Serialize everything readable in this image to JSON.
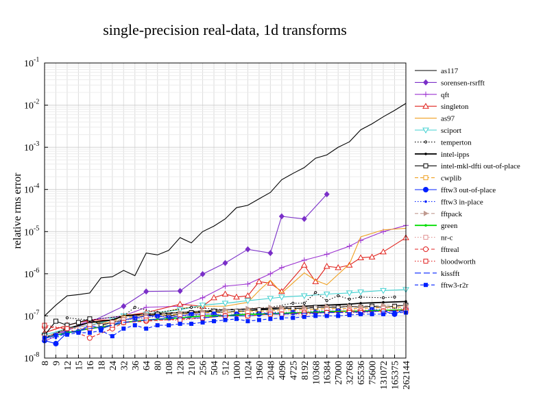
{
  "chart_data": {
    "type": "line",
    "title": "single-precision real-data, 1d transforms",
    "xlabel": "",
    "ylabel": "relative rms error",
    "yscale": "log",
    "ylim": [
      1e-08,
      0.1
    ],
    "y_ticks": [
      {
        "value": 1e-08,
        "base": "10",
        "exp": "-8"
      },
      {
        "value": 1e-07,
        "base": "10",
        "exp": "-7"
      },
      {
        "value": 1e-06,
        "base": "10",
        "exp": "-6"
      },
      {
        "value": 1e-05,
        "base": "10",
        "exp": "-5"
      },
      {
        "value": 0.0001,
        "base": "10",
        "exp": "-4"
      },
      {
        "value": 0.001,
        "base": "10",
        "exp": "-3"
      },
      {
        "value": 0.01,
        "base": "10",
        "exp": "-2"
      },
      {
        "value": 0.1,
        "base": "10",
        "exp": "-1"
      }
    ],
    "grid": true,
    "legend_position": "right",
    "categories": [
      "8",
      "9",
      "12",
      "15",
      "16",
      "18",
      "24",
      "32",
      "36",
      "64",
      "80",
      "108",
      "128",
      "210",
      "256",
      "504",
      "512",
      "1000",
      "1024",
      "1960",
      "2048",
      "4096",
      "4725",
      "8192",
      "10368",
      "16384",
      "27000",
      "32768",
      "65536",
      "75600",
      "131072",
      "165375",
      "262144"
    ],
    "series": [
      {
        "name": "as117",
        "color": "#000000",
        "marker": "none",
        "dash": "solid",
        "values": [
          1e-07,
          1.8e-07,
          3e-07,
          3.2e-07,
          3.5e-07,
          8e-07,
          8.5e-07,
          1.2e-06,
          9e-07,
          3.1e-06,
          2.8e-06,
          3.6e-06,
          7.2e-06,
          5.4e-06,
          1e-05,
          1.35e-05,
          2e-05,
          3.7e-05,
          4.2e-05,
          6e-05,
          8.5e-05,
          0.00017,
          0.00024,
          0.00033,
          0.00055,
          0.00066,
          0.001,
          0.00135,
          0.0026,
          0.0036,
          0.0053,
          0.0075,
          0.011
        ]
      },
      {
        "name": "sorensen-rsrfft",
        "color": "#7a2fc8",
        "marker": "diamond",
        "dash": "solid",
        "values": [
          3e-08,
          null,
          null,
          null,
          7e-08,
          null,
          null,
          1.7e-07,
          null,
          3.8e-07,
          null,
          null,
          3.9e-07,
          null,
          9.8e-07,
          null,
          1.8e-06,
          null,
          3.8e-06,
          null,
          3.1e-06,
          2.3e-05,
          null,
          2e-05,
          null,
          7.7e-05,
          null,
          null,
          null,
          null,
          null,
          null,
          null
        ]
      },
      {
        "name": "qft",
        "color": "#9b30d0",
        "marker": "plus",
        "dash": "solid",
        "values": [
          2.5e-08,
          null,
          null,
          null,
          8e-08,
          null,
          null,
          1e-07,
          null,
          1.6e-07,
          null,
          null,
          1.7e-07,
          null,
          2.7e-07,
          null,
          5.1e-07,
          null,
          5.7e-07,
          null,
          1e-06,
          1.4e-06,
          null,
          2.1e-06,
          null,
          2.9e-06,
          null,
          4.5e-06,
          6.2e-06,
          null,
          1e-05,
          null,
          1.4e-05
        ]
      },
      {
        "name": "singleton",
        "color": "#e0201a",
        "marker": "triangle",
        "dash": "solid",
        "values": [
          4e-08,
          null,
          6e-08,
          null,
          8e-08,
          null,
          8e-08,
          1e-07,
          null,
          1.2e-07,
          null,
          null,
          1.9e-07,
          null,
          1.7e-07,
          2.7e-07,
          3.3e-07,
          2.8e-07,
          3e-07,
          6.5e-07,
          6e-07,
          3.8e-07,
          null,
          1.6e-06,
          6.5e-07,
          1.5e-06,
          1.4e-06,
          1.6e-06,
          2.4e-06,
          2.5e-06,
          3.3e-06,
          null,
          7.2e-06
        ]
      },
      {
        "name": "as97",
        "color": "#f0a020",
        "marker": "none",
        "dash": "solid",
        "values": [
          3e-08,
          null,
          5e-08,
          null,
          7e-08,
          null,
          7e-08,
          1.1e-07,
          null,
          1e-07,
          null,
          null,
          1.5e-07,
          null,
          1.7e-07,
          null,
          1.7e-07,
          null,
          2.1e-07,
          4e-07,
          7e-07,
          3.5e-07,
          null,
          1.05e-06,
          7e-07,
          5.5e-07,
          null,
          1.7e-06,
          7.5e-06,
          null,
          1.1e-05,
          null,
          1.2e-05
        ]
      },
      {
        "name": "sciport",
        "color": "#40d0d0",
        "marker": "triangle-down",
        "dash": "solid",
        "values": [
          3.5e-08,
          null,
          5e-08,
          null,
          6e-08,
          null,
          8e-08,
          1e-07,
          null,
          1.1e-07,
          null,
          null,
          1.4e-07,
          null,
          1.8e-07,
          null,
          2e-07,
          null,
          2.3e-07,
          null,
          2.6e-07,
          2.8e-07,
          null,
          3e-07,
          null,
          3.3e-07,
          null,
          3.5e-07,
          3.7e-07,
          null,
          4e-07,
          null,
          4.2e-07
        ]
      },
      {
        "name": "temperton",
        "color": "#000000",
        "marker": "circle-small",
        "dash": "dotted",
        "values": [
          null,
          null,
          9e-08,
          null,
          8e-08,
          null,
          null,
          1e-07,
          1.6e-07,
          null,
          1.2e-07,
          null,
          null,
          1.6e-07,
          null,
          null,
          1.4e-07,
          null,
          1.5e-07,
          null,
          1.6e-07,
          null,
          2e-07,
          2e-07,
          3.6e-07,
          2.3e-07,
          3e-07,
          2.5e-07,
          2.8e-07,
          null,
          2.7e-07,
          2.8e-07,
          null
        ]
      },
      {
        "name": "intel-ipps",
        "color": "#000000",
        "marker": "dot",
        "dash": "solid",
        "values": [
          3e-08,
          null,
          5e-08,
          null,
          7e-08,
          null,
          8e-08,
          1e-07,
          null,
          1.1e-07,
          null,
          null,
          1.2e-07,
          null,
          1.3e-07,
          null,
          1.4e-07,
          null,
          1.45e-07,
          null,
          1.5e-07,
          1.6e-07,
          null,
          1.7e-07,
          null,
          1.8e-07,
          null,
          1.9e-07,
          2e-07,
          null,
          2.1e-07,
          null,
          2.2e-07
        ]
      },
      {
        "name": "intel-mkl-dfti out-of-place",
        "color": "#000000",
        "marker": "square-open",
        "dash": "solid",
        "values": [
          3.5e-08,
          7.5e-08,
          6e-08,
          7e-08,
          8.5e-08,
          6e-08,
          7e-08,
          8e-08,
          9e-08,
          1e-07,
          1.1e-07,
          1e-07,
          1.1e-07,
          1.2e-07,
          1.2e-07,
          1.3e-07,
          1.2e-07,
          1.3e-07,
          1.3e-07,
          1.4e-07,
          1.4e-07,
          1.5e-07,
          1.5e-07,
          1.5e-07,
          1.6e-07,
          1.6e-07,
          1.6e-07,
          1.7e-07,
          1.6e-07,
          1.7e-07,
          1.6e-07,
          1.7e-07,
          1.8e-07
        ]
      },
      {
        "name": "cwplib",
        "color": "#f0a020",
        "marker": "square-open",
        "dash": "dashed",
        "values": [
          3e-08,
          null,
          5e-08,
          null,
          6e-08,
          null,
          7e-08,
          9e-08,
          null,
          1e-07,
          null,
          null,
          1.1e-07,
          null,
          1.2e-07,
          null,
          1.2e-07,
          null,
          1.3e-07,
          null,
          1.3e-07,
          1.4e-07,
          null,
          1.4e-07,
          null,
          1.5e-07,
          null,
          1.5e-07,
          1.5e-07,
          null,
          1.6e-07,
          null,
          1.6e-07
        ]
      },
      {
        "name": "fftw3 out-of-place",
        "color": "#0020ff",
        "marker": "circle-filled",
        "dash": "solid",
        "values": [
          2.6e-08,
          2.2e-08,
          4e-08,
          4.2e-08,
          6e-08,
          5e-08,
          6e-08,
          8e-08,
          9e-08,
          1e-07,
          1e-07,
          9e-08,
          1e-07,
          1.1e-07,
          1.1e-07,
          1.1e-07,
          1e-07,
          1.1e-07,
          1.1e-07,
          1.1e-07,
          1.2e-07,
          1.1e-07,
          1.2e-07,
          1.2e-07,
          1.2e-07,
          1.3e-07,
          1.3e-07,
          1.3e-07,
          1.2e-07,
          1.4e-07,
          1.3e-07,
          1.1e-07,
          1.5e-07
        ]
      },
      {
        "name": "fftw3 in-place",
        "color": "#0020ff",
        "marker": "dot",
        "dash": "dotted",
        "values": [
          3e-08,
          3e-08,
          4e-08,
          4.5e-08,
          6e-08,
          5e-08,
          6e-08,
          8e-08,
          8.5e-08,
          9e-08,
          1e-07,
          9.5e-08,
          1e-07,
          1e-07,
          1.1e-07,
          1.1e-07,
          1e-07,
          1.1e-07,
          1.1e-07,
          1.2e-07,
          1.2e-07,
          1.2e-07,
          1.2e-07,
          1.2e-07,
          1.3e-07,
          1.3e-07,
          1.3e-07,
          1.3e-07,
          1.3e-07,
          1.4e-07,
          1.4e-07,
          1.3e-07,
          1.5e-07
        ]
      },
      {
        "name": "fftpack",
        "color": "#c09a90",
        "marker": "triangle-right",
        "dash": "dashed",
        "values": [
          3e-08,
          null,
          5e-08,
          null,
          6e-08,
          null,
          7e-08,
          9e-08,
          null,
          1.1e-07,
          null,
          null,
          1.2e-07,
          null,
          1.3e-07,
          null,
          1.4e-07,
          null,
          1.5e-07,
          null,
          1.6e-07,
          1.6e-07,
          null,
          1.6e-07,
          null,
          1.7e-07,
          null,
          1.7e-07,
          1.7e-07,
          null,
          1.8e-07,
          null,
          1.8e-07
        ]
      },
      {
        "name": "green",
        "color": "#00dd00",
        "marker": "dot",
        "dash": "solid",
        "values": [
          3e-08,
          null,
          4e-08,
          null,
          5e-08,
          null,
          6e-08,
          7e-08,
          null,
          8e-08,
          null,
          null,
          9e-08,
          null,
          1e-07,
          null,
          1e-07,
          null,
          1.1e-07,
          null,
          1.1e-07,
          1.15e-07,
          null,
          1.2e-07,
          null,
          1.25e-07,
          null,
          1.3e-07,
          1.3e-07,
          null,
          1.35e-07,
          null,
          1.4e-07
        ]
      },
      {
        "name": "nr-c",
        "color": "#e09090",
        "marker": "square-open",
        "dash": "dotted",
        "values": [
          3e-08,
          null,
          5e-08,
          null,
          6e-08,
          null,
          7e-08,
          8e-08,
          null,
          9e-08,
          null,
          null,
          1e-07,
          null,
          1.1e-07,
          null,
          1.1e-07,
          null,
          1.2e-07,
          null,
          1.2e-07,
          1.3e-07,
          null,
          1.3e-07,
          null,
          1.4e-07,
          null,
          1.4e-07,
          1.4e-07,
          null,
          1.5e-07,
          null,
          1.5e-07
        ]
      },
      {
        "name": "fftreal",
        "color": "#e02020",
        "marker": "circle-open",
        "dash": "dashed",
        "values": [
          5.5e-08,
          null,
          5e-08,
          null,
          3e-08,
          null,
          5e-08,
          7e-08,
          null,
          7.5e-08,
          null,
          null,
          8.5e-08,
          null,
          9e-08,
          null,
          1e-07,
          null,
          1e-07,
          null,
          1.1e-07,
          1.1e-07,
          null,
          1.2e-07,
          null,
          1.2e-07,
          null,
          1.3e-07,
          1.3e-07,
          null,
          1.3e-07,
          null,
          1.4e-07
        ]
      },
      {
        "name": "bloodworth",
        "color": "#e02020",
        "marker": "square-open",
        "dash": "dotted",
        "values": [
          6e-08,
          null,
          5e-08,
          null,
          5e-08,
          null,
          6e-08,
          7e-08,
          null,
          8e-08,
          null,
          null,
          8e-08,
          null,
          9e-08,
          null,
          1e-07,
          null,
          1e-07,
          null,
          1.1e-07,
          1.1e-07,
          null,
          1.1e-07,
          null,
          1.2e-07,
          null,
          1.2e-07,
          1.2e-07,
          null,
          1.3e-07,
          null,
          1.3e-07
        ]
      },
      {
        "name": "kissfft",
        "color": "#0020ff",
        "marker": "none",
        "dash": "long-dash",
        "values": [
          3e-08,
          null,
          4e-08,
          null,
          5e-08,
          null,
          6e-08,
          7e-08,
          null,
          8e-08,
          null,
          null,
          9e-08,
          null,
          9e-08,
          null,
          1e-07,
          null,
          1e-07,
          null,
          1.1e-07,
          1.1e-07,
          null,
          1.15e-07,
          null,
          1.2e-07,
          null,
          1.2e-07,
          1.25e-07,
          null,
          1.3e-07,
          null,
          1.3e-07
        ]
      },
      {
        "name": "fftw3-r2r",
        "color": "#0020ff",
        "marker": "square-filled",
        "dash": "dashed",
        "values": [
          3e-08,
          3.5e-08,
          3.6e-08,
          4e-08,
          4e-08,
          4.5e-08,
          3.3e-08,
          5e-08,
          6e-08,
          5e-08,
          6e-08,
          6e-08,
          6.5e-08,
          6.5e-08,
          7e-08,
          7.5e-08,
          8e-08,
          8.5e-08,
          7.5e-08,
          8e-08,
          8.5e-08,
          9e-08,
          9e-08,
          9.5e-08,
          1e-07,
          1e-07,
          1e-07,
          1.05e-07,
          1.1e-07,
          1.1e-07,
          1.1e-07,
          1.2e-07,
          1.2e-07
        ]
      }
    ]
  }
}
